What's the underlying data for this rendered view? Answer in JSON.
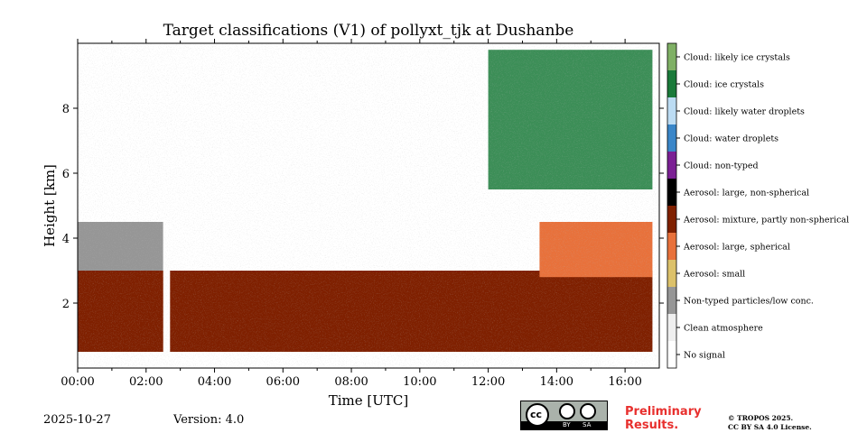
{
  "chart_data": {
    "type": "heatmap",
    "title": "Target classifications (V1) of pollyxt_tjk at Dushanbe",
    "xlabel": "Time [UTC]",
    "ylabel": "Height [km]",
    "x_ticks": [
      "00:00",
      "02:00",
      "04:00",
      "06:00",
      "08:00",
      "10:00",
      "12:00",
      "14:00",
      "16:00"
    ],
    "y_ticks": [
      "2",
      "4",
      "6",
      "8"
    ],
    "x_range_hours": [
      0,
      17
    ],
    "y_range_km": [
      0,
      10
    ],
    "classes": [
      {
        "id": 0,
        "label": "No signal",
        "color": "#ffffff"
      },
      {
        "id": 1,
        "label": "Clean atmosphere",
        "color": "#efefef"
      },
      {
        "id": 2,
        "label": "Non-typed particles/low conc.",
        "color": "#969696"
      },
      {
        "id": 3,
        "label": "Aerosol: small",
        "color": "#dcc16a"
      },
      {
        "id": 4,
        "label": "Aerosol: large, spherical",
        "color": "#e8713b"
      },
      {
        "id": 5,
        "label": "Aerosol: mixture, partly non-spherical",
        "color": "#7f2000"
      },
      {
        "id": 6,
        "label": "Aerosol: large, non-spherical",
        "color": "#000000"
      },
      {
        "id": 7,
        "label": "Cloud: non-typed",
        "color": "#7b2094"
      },
      {
        "id": 8,
        "label": "Cloud: water droplets",
        "color": "#3a86c8"
      },
      {
        "id": 9,
        "label": "Cloud: likely water droplets",
        "color": "#bcdcf3"
      },
      {
        "id": 10,
        "label": "Cloud: ice crystals",
        "color": "#1a7a3a"
      },
      {
        "id": 11,
        "label": "Cloud: likely ice crystals",
        "color": "#7fb065"
      }
    ],
    "layers": [
      {
        "class": "Aerosol: mixture, partly non-spherical",
        "x_start_h": 0.0,
        "x_end_h": 16.8,
        "y_bottom_km": 0.5,
        "y_top_km": 1.5
      },
      {
        "class": "Aerosol: mixture, partly non-spherical",
        "x_start_h": 0.0,
        "x_end_h": 16.8,
        "y_bottom_km": 1.5,
        "y_top_km": 3.0
      },
      {
        "class": "Non-typed particles/low conc.",
        "x_start_h": 0.0,
        "x_end_h": 2.5,
        "y_bottom_km": 3.0,
        "y_top_km": 4.5
      },
      {
        "class": "Aerosol: large, spherical",
        "x_start_h": 13.5,
        "x_end_h": 16.8,
        "y_bottom_km": 2.8,
        "y_top_km": 4.5
      },
      {
        "class": "Cloud: ice crystals",
        "x_start_h": 12.0,
        "x_end_h": 16.8,
        "y_bottom_km": 5.5,
        "y_top_km": 9.8
      }
    ],
    "data_gap_h": [
      2.5,
      2.7
    ],
    "grid": false,
    "legend_placement": "right colorbar"
  },
  "footer": {
    "date": "2025-10-27",
    "version": "Version: 4.0",
    "preliminary_line1": "Preliminary",
    "preliminary_line2": "Results.",
    "copyright_line1": "© TROPOS 2025.",
    "copyright_line2": "CC BY SA 4.0 License.",
    "license_badge": {
      "cc": "cc",
      "by": "BY",
      "sa": "SA"
    }
  }
}
